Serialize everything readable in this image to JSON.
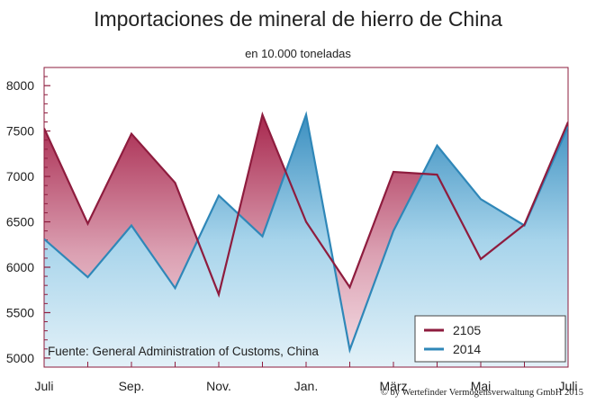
{
  "chart_data": {
    "type": "area",
    "title": "Importaciones de mineral de hierro de China",
    "subtitle": "en 10.000 toneladas",
    "source_note": "Fuente: General Administration of Customs, China",
    "credit": "© by Wertefinder Vermögensverwaltung GmbH 2015",
    "x_tick_labels": [
      "Juli",
      "Sep.",
      "Nov.",
      "Jan.",
      "März",
      "Mai",
      "Juli"
    ],
    "y_tick_labels": [
      "8000",
      "7500",
      "7000",
      "6500",
      "6000",
      "5500",
      "5000"
    ],
    "ylim": [
      4900,
      8200
    ],
    "y_ticks": [
      5000,
      5500,
      6000,
      6500,
      7000,
      7500,
      8000
    ],
    "months": 13,
    "x_tick_month_index": [
      0,
      2,
      4,
      6,
      8,
      10,
      12
    ],
    "series": [
      {
        "name": "2105",
        "color": "#8e1c3e",
        "values": [
          7530,
          6480,
          7470,
          6930,
          5700,
          7680,
          6500,
          5780,
          7050,
          7020,
          6090,
          6470,
          7600
        ]
      },
      {
        "name": "2014",
        "color": "#2f87b8",
        "values": [
          6310,
          5890,
          6460,
          5770,
          6790,
          6340,
          7680,
          5090,
          6400,
          7340,
          6750,
          6460,
          7550
        ]
      }
    ],
    "legend_position": "bottom-right",
    "grid": false
  }
}
